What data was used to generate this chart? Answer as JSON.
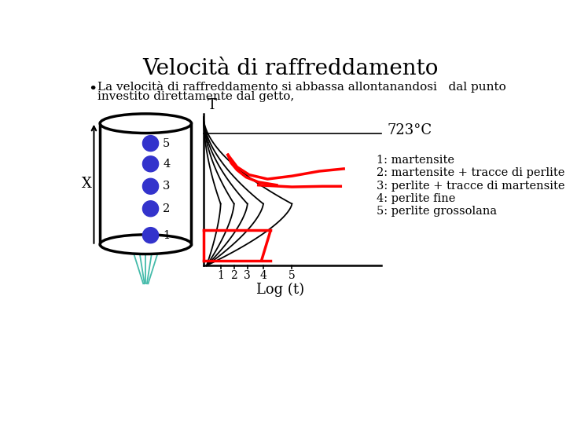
{
  "title": "Velocità di raffreddamento",
  "bullet_text_line1": "La velocità di raffreddamento si abbassa allontanandosi   dal punto",
  "bullet_text_line2": "investito direttamente dal getto,",
  "temp_label": "723°C",
  "x_label": "Log (t)",
  "t_label": "T",
  "x_axis_label": "X",
  "legend": [
    "1: martensite",
    "2: martensite + tracce di perlite",
    "3: perlite + tracce di martensite",
    "4: perlite fine",
    "5: perlite grossolana"
  ],
  "dot_numbers": [
    "5",
    "4",
    "3",
    "2",
    "1"
  ],
  "dot_color": "#3333CC",
  "bg_color": "#ffffff",
  "title_fontsize": 20,
  "body_fontsize": 11,
  "legend_fontsize": 10.5,
  "stream_color": "#44BBAA",
  "curve_color": "black",
  "red_color": "red"
}
